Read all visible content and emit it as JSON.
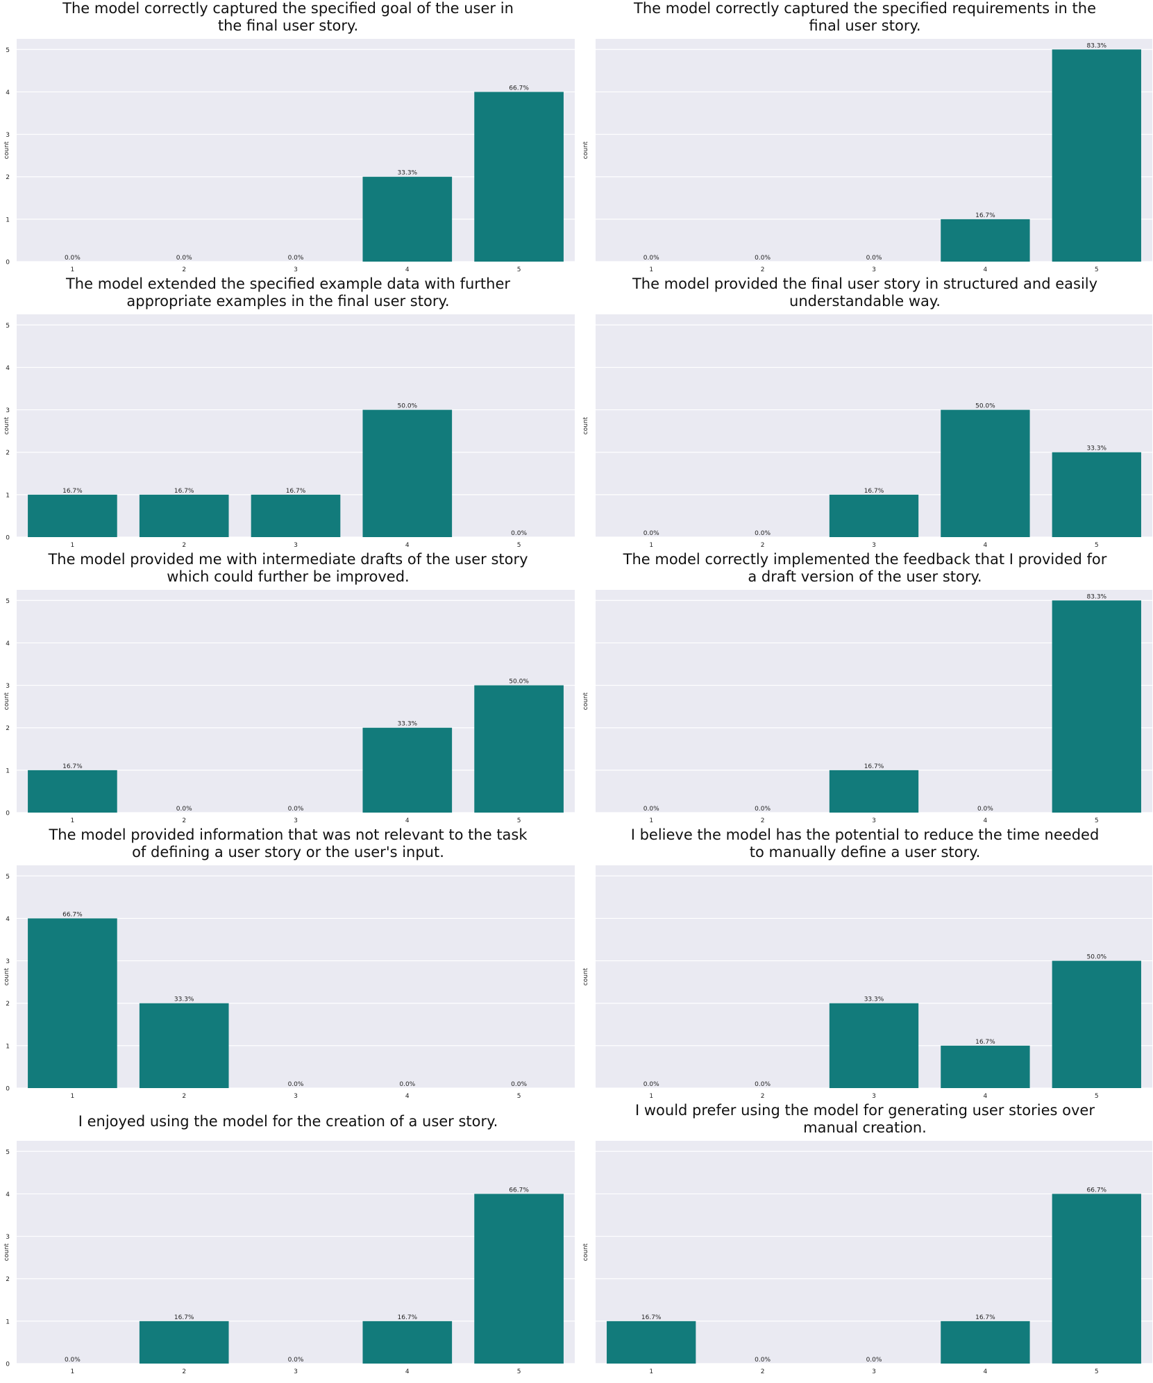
{
  "chart_data": [
    {
      "type": "bar",
      "title": "The model correctly captured the specified goal of the user in\nthe final user story.",
      "categories": [
        "1",
        "2",
        "3",
        "4",
        "5"
      ],
      "values": [
        0,
        0,
        0,
        2,
        4
      ],
      "labels": [
        "0.0%",
        "0.0%",
        "0.0%",
        "33.3%",
        "66.7%"
      ],
      "ylabel": "count",
      "xlabel": "",
      "ylim": [
        0,
        5.25
      ],
      "yticks": [
        "0",
        "1",
        "2",
        "3",
        "4",
        "5"
      ],
      "bar_color": "#127b7b",
      "grid": true
    },
    {
      "type": "bar",
      "title": "The model correctly captured the specified requirements in the\nfinal user story.",
      "categories": [
        "1",
        "2",
        "3",
        "4",
        "5"
      ],
      "values": [
        0,
        0,
        0,
        1,
        5
      ],
      "labels": [
        "0.0%",
        "0.0%",
        "0.0%",
        "16.7%",
        "83.3%"
      ],
      "ylabel": "count",
      "xlabel": "",
      "ylim": [
        0,
        5.25
      ],
      "yticks": [],
      "bar_color": "#127b7b",
      "grid": true
    },
    {
      "type": "bar",
      "title": "The model extended the specified example data with further\nappropriate examples in the final user story.",
      "categories": [
        "1",
        "2",
        "3",
        "4",
        "5"
      ],
      "values": [
        1,
        1,
        1,
        3,
        0
      ],
      "labels": [
        "16.7%",
        "16.7%",
        "16.7%",
        "50.0%",
        "0.0%"
      ],
      "ylabel": "count",
      "xlabel": "",
      "ylim": [
        0,
        5.25
      ],
      "yticks": [
        "0",
        "1",
        "2",
        "3",
        "4",
        "5"
      ],
      "bar_color": "#127b7b",
      "grid": true
    },
    {
      "type": "bar",
      "title": "The model provided the final user story in structured and easily\nunderstandable way.",
      "categories": [
        "1",
        "2",
        "3",
        "4",
        "5"
      ],
      "values": [
        0,
        0,
        1,
        3,
        2
      ],
      "labels": [
        "0.0%",
        "0.0%",
        "16.7%",
        "50.0%",
        "33.3%"
      ],
      "ylabel": "count",
      "xlabel": "",
      "ylim": [
        0,
        5.25
      ],
      "yticks": [],
      "bar_color": "#127b7b",
      "grid": true
    },
    {
      "type": "bar",
      "title": "The model provided me with intermediate drafts of the user story\nwhich could further be improved.",
      "categories": [
        "1",
        "2",
        "3",
        "4",
        "5"
      ],
      "values": [
        1,
        0,
        0,
        2,
        3
      ],
      "labels": [
        "16.7%",
        "0.0%",
        "0.0%",
        "33.3%",
        "50.0%"
      ],
      "ylabel": "count",
      "xlabel": "",
      "ylim": [
        0,
        5.25
      ],
      "yticks": [
        "0",
        "1",
        "2",
        "3",
        "4",
        "5"
      ],
      "bar_color": "#127b7b",
      "grid": true
    },
    {
      "type": "bar",
      "title": "The model correctly implemented the feedback that I provided for\na draft version of the user story.",
      "categories": [
        "1",
        "2",
        "3",
        "4",
        "5"
      ],
      "values": [
        0,
        0,
        1,
        0,
        5
      ],
      "labels": [
        "0.0%",
        "0.0%",
        "16.7%",
        "0.0%",
        "83.3%"
      ],
      "ylabel": "count",
      "xlabel": "",
      "ylim": [
        0,
        5.25
      ],
      "yticks": [],
      "bar_color": "#127b7b",
      "grid": true
    },
    {
      "type": "bar",
      "title": "The model provided information that was not relevant to the task\nof defining a user story or the user's input.",
      "categories": [
        "1",
        "2",
        "3",
        "4",
        "5"
      ],
      "values": [
        4,
        2,
        0,
        0,
        0
      ],
      "labels": [
        "66.7%",
        "33.3%",
        "0.0%",
        "0.0%",
        "0.0%"
      ],
      "ylabel": "count",
      "xlabel": "",
      "ylim": [
        0,
        5.25
      ],
      "yticks": [
        "0",
        "1",
        "2",
        "3",
        "4",
        "5"
      ],
      "bar_color": "#127b7b",
      "grid": true
    },
    {
      "type": "bar",
      "title": "I believe the model has the potential to reduce the time needed\nto manually define a user story.",
      "categories": [
        "1",
        "2",
        "3",
        "4",
        "5"
      ],
      "values": [
        0,
        0,
        2,
        1,
        3
      ],
      "labels": [
        "0.0%",
        "0.0%",
        "33.3%",
        "16.7%",
        "50.0%"
      ],
      "ylabel": "count",
      "xlabel": "",
      "ylim": [
        0,
        5.25
      ],
      "yticks": [],
      "bar_color": "#127b7b",
      "grid": true
    },
    {
      "type": "bar",
      "title": "I enjoyed using the model for the creation of a user story.",
      "categories": [
        "1",
        "2",
        "3",
        "4",
        "5"
      ],
      "values": [
        0,
        1,
        0,
        1,
        4
      ],
      "labels": [
        "0.0%",
        "16.7%",
        "0.0%",
        "16.7%",
        "66.7%"
      ],
      "ylabel": "count",
      "xlabel": "",
      "ylim": [
        0,
        5.25
      ],
      "yticks": [
        "0",
        "1",
        "2",
        "3",
        "4",
        "5"
      ],
      "bar_color": "#127b7b",
      "grid": true
    },
    {
      "type": "bar",
      "title": "I would prefer using the model for generating user stories over\nmanual creation.",
      "categories": [
        "1",
        "2",
        "3",
        "4",
        "5"
      ],
      "values": [
        1,
        0,
        0,
        1,
        4
      ],
      "labels": [
        "16.7%",
        "0.0%",
        "0.0%",
        "16.7%",
        "66.7%"
      ],
      "ylabel": "count",
      "xlabel": "",
      "ylim": [
        0,
        5.25
      ],
      "yticks": [],
      "bar_color": "#127b7b",
      "grid": true
    }
  ]
}
